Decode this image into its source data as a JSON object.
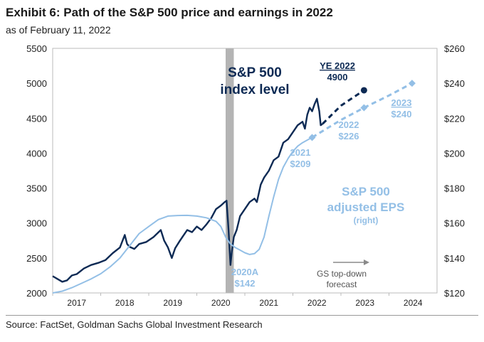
{
  "title": "Exhibit 6: Path of the S&P 500 price and earnings in 2022",
  "subtitle": "as of February 11, 2022",
  "source": "Source: FactSet, Goldman Sachs Global Investment Research",
  "colors": {
    "index": "#0d2a54",
    "eps": "#93bfe6",
    "recession": "#b4b4b4",
    "axis": "#bbbbbb",
    "forecast_arrow": "#8a8a8a"
  },
  "chart_data": {
    "type": "line",
    "xlim": [
      2016.5,
      2024.5
    ],
    "x_tick_labels": [
      "2017",
      "2018",
      "2019",
      "2020",
      "2021",
      "2022",
      "2023",
      "2024"
    ],
    "y_left": {
      "range": [
        2000,
        5500
      ],
      "tick_labels": [
        "2000",
        "2500",
        "3000",
        "3500",
        "4000",
        "4500",
        "5000",
        "5500"
      ]
    },
    "y_right": {
      "label": "right",
      "range": [
        120,
        260
      ],
      "tick_labels": [
        "$120",
        "$140",
        "$160",
        "$180",
        "$200",
        "$220",
        "$240",
        "$260"
      ]
    },
    "recession_band": [
      2020.1,
      2020.27
    ],
    "series": [
      {
        "name": "S&P 500 index level",
        "axis": "left",
        "style": "solid",
        "x": [
          2016.5,
          2016.6,
          2016.7,
          2016.8,
          2016.9,
          2017.0,
          2017.15,
          2017.3,
          2017.45,
          2017.6,
          2017.75,
          2017.9,
          2018.0,
          2018.05,
          2018.1,
          2018.2,
          2018.3,
          2018.45,
          2018.6,
          2018.75,
          2018.82,
          2018.9,
          2018.98,
          2019.05,
          2019.15,
          2019.3,
          2019.4,
          2019.5,
          2019.6,
          2019.7,
          2019.8,
          2019.9,
          2020.0,
          2020.08,
          2020.12,
          2020.16,
          2020.2,
          2020.23,
          2020.27,
          2020.33,
          2020.4,
          2020.5,
          2020.6,
          2020.7,
          2020.75,
          2020.83,
          2020.9,
          2021.0,
          2021.1,
          2021.2,
          2021.3,
          2021.4,
          2021.5,
          2021.6,
          2021.7,
          2021.75,
          2021.8,
          2021.85,
          2021.9,
          2021.95,
          2022.0,
          2022.05,
          2022.08,
          2022.12
        ],
        "values": [
          2240,
          2200,
          2160,
          2180,
          2250,
          2270,
          2350,
          2400,
          2430,
          2470,
          2570,
          2650,
          2830,
          2700,
          2660,
          2630,
          2700,
          2730,
          2800,
          2900,
          2750,
          2650,
          2500,
          2640,
          2750,
          2900,
          2870,
          2950,
          2900,
          2980,
          3070,
          3200,
          3250,
          3300,
          3320,
          2900,
          2400,
          2600,
          2800,
          2900,
          3100,
          3200,
          3300,
          3350,
          3300,
          3550,
          3650,
          3750,
          3900,
          3950,
          4150,
          4200,
          4300,
          4400,
          4450,
          4350,
          4550,
          4650,
          4600,
          4700,
          4780,
          4600,
          4400,
          4420
        ]
      },
      {
        "name": "S&P 500 adjusted EPS (right)",
        "axis": "right",
        "style": "solid",
        "x": [
          2016.5,
          2016.7,
          2016.9,
          2017.1,
          2017.3,
          2017.5,
          2017.7,
          2017.9,
          2018.1,
          2018.3,
          2018.5,
          2018.7,
          2018.9,
          2019.1,
          2019.3,
          2019.5,
          2019.7,
          2019.9,
          2020.0,
          2020.1,
          2020.2,
          2020.3,
          2020.4,
          2020.5,
          2020.6,
          2020.7,
          2020.8,
          2020.9,
          2021.0,
          2021.1,
          2021.2,
          2021.3,
          2021.4,
          2021.5,
          2021.6,
          2021.7,
          2021.8,
          2021.9
        ],
        "values": [
          120,
          121,
          123,
          125.5,
          128,
          131,
          135,
          140,
          147,
          154,
          158,
          162,
          164,
          164.3,
          164.4,
          164,
          163,
          161,
          158,
          152,
          148,
          146,
          144.5,
          143,
          142,
          142.5,
          145,
          152,
          164,
          175,
          185,
          192,
          197,
          201,
          204,
          206,
          207.5,
          209
        ]
      },
      {
        "name": "S&P 500 index forecast",
        "axis": "left",
        "style": "dashed",
        "x": [
          2022.12,
          2022.5,
          2022.98
        ],
        "values": [
          4420,
          4680,
          4900
        ]
      },
      {
        "name": "EPS forecast",
        "axis": "right",
        "style": "dashed",
        "x": [
          2021.9,
          2022.5,
          2022.98,
          2023.5,
          2023.98
        ],
        "values": [
          209,
          219,
          226,
          233,
          240
        ]
      }
    ],
    "markers": [
      {
        "series": "S&P 500 index forecast",
        "shape": "circle",
        "x": 2022.98,
        "value": 4900
      },
      {
        "series": "EPS forecast",
        "shape": "diamond",
        "x": 2021.9,
        "value": 209
      },
      {
        "series": "EPS forecast",
        "shape": "diamond",
        "x": 2022.98,
        "value": 226
      },
      {
        "series": "EPS forecast",
        "shape": "diamond",
        "x": 2023.98,
        "value": 240
      }
    ],
    "annotations": {
      "index_label": [
        "S&P 500",
        "index level"
      ],
      "eps_label": [
        "S&P 500",
        "adjusted EPS"
      ],
      "eps_axis_note": "(right)",
      "ye_label": "YE 2022",
      "ye_value": "4900",
      "eps_2021": [
        "2021",
        "$209"
      ],
      "eps_2022": [
        "2022",
        "$226"
      ],
      "eps_2023": [
        "2023",
        "$240"
      ],
      "eps_2020": [
        "2020A",
        "$142"
      ],
      "forecast_note": [
        "GS top-down",
        "forecast"
      ]
    }
  }
}
